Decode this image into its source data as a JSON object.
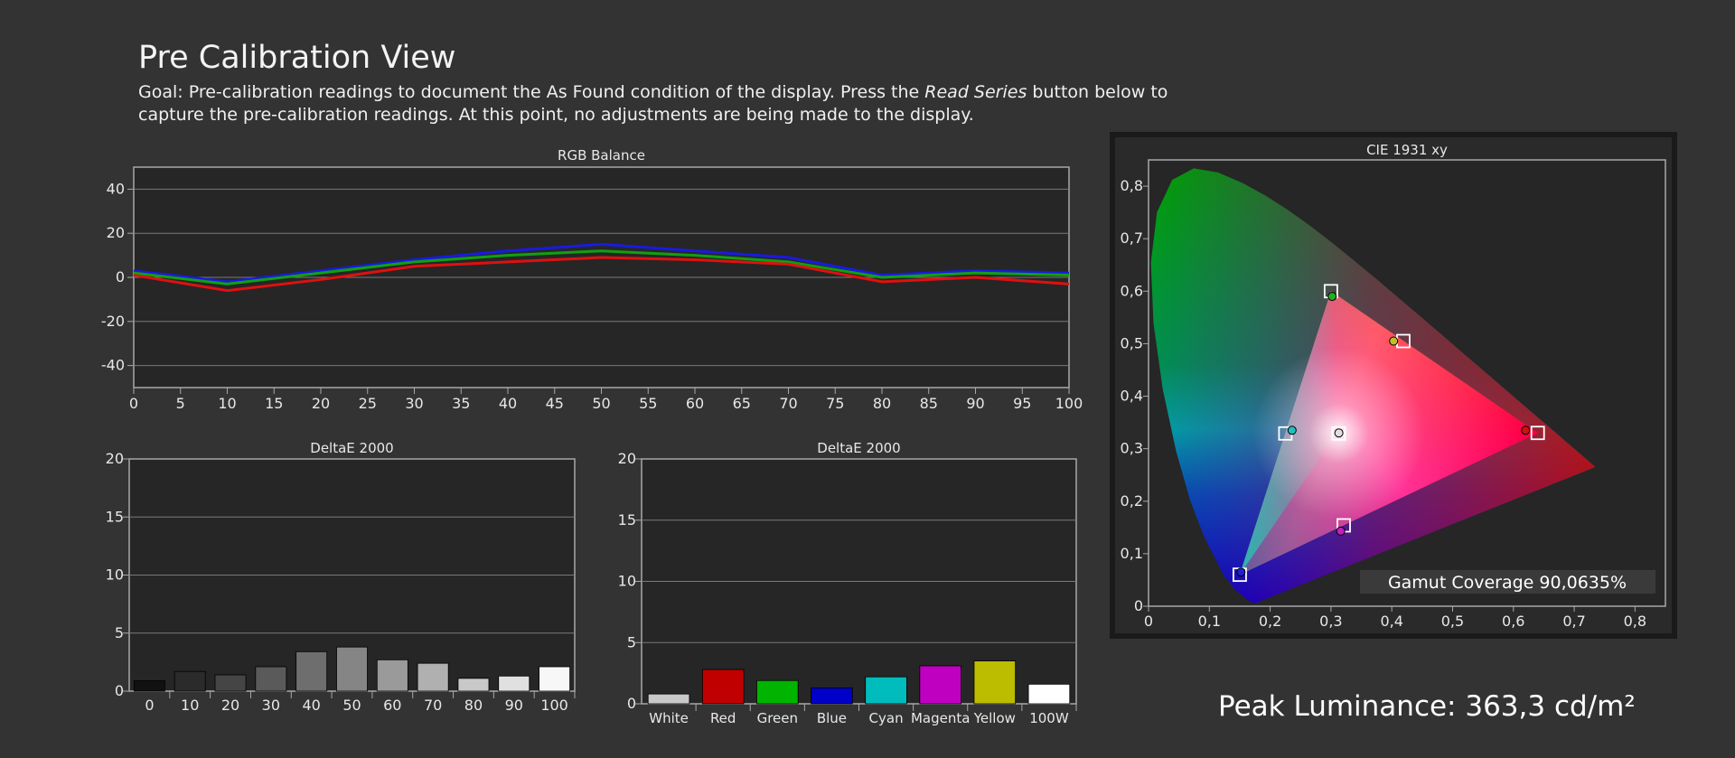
{
  "page": {
    "title": "Pre Calibration View",
    "goal_part1": "Goal: Pre-calibration readings to document the As Found condition of the display. Press the ",
    "goal_italic": "Read Series",
    "goal_part2": " button below to capture the pre-calibration readings. At this point, no adjustments are being made to the display.",
    "peak_luminance": "Peak Luminance: 363,3 cd/m²"
  },
  "colors": {
    "background": "#333333",
    "plot_bg": "#262626",
    "grid": "#7a7a7a",
    "red": "#e01010",
    "green": "#10a010",
    "blue": "#1a1ae0"
  },
  "chart_data": [
    {
      "id": "rgb_balance",
      "type": "line",
      "title": "RGB Balance",
      "x": [
        0,
        10,
        20,
        30,
        40,
        50,
        60,
        70,
        80,
        90,
        100
      ],
      "xticks": [
        "0",
        "5",
        "10",
        "15",
        "20",
        "25",
        "30",
        "35",
        "40",
        "45",
        "50",
        "55",
        "60",
        "65",
        "70",
        "75",
        "80",
        "85",
        "90",
        "95",
        "100"
      ],
      "yticks": [
        "40",
        "20",
        "0",
        "-20",
        "-40"
      ],
      "xlim": [
        0,
        100
      ],
      "ylim": [
        -50,
        50
      ],
      "series": [
        {
          "color": "#1a1ae0",
          "values": [
            3,
            -2,
            3,
            8,
            12,
            15,
            12,
            9,
            1,
            3,
            2
          ]
        },
        {
          "color": "#10a010",
          "values": [
            2,
            -3,
            2,
            7,
            10,
            12,
            10,
            7,
            0,
            2,
            1
          ]
        },
        {
          "color": "#e01010",
          "values": [
            1,
            -6,
            -1,
            5,
            7,
            9,
            8,
            6,
            -2,
            0,
            -3
          ]
        }
      ],
      "grid": true
    },
    {
      "id": "deltae_grayscale",
      "type": "bar",
      "title": "DeltaE 2000",
      "categories": [
        "0",
        "10",
        "20",
        "30",
        "40",
        "50",
        "60",
        "70",
        "80",
        "90",
        "100"
      ],
      "values": [
        0.9,
        1.7,
        1.4,
        2.1,
        3.4,
        3.8,
        2.7,
        2.4,
        1.1,
        1.3,
        2.1
      ],
      "bar_colors": [
        "#111111",
        "#2b2b2b",
        "#454545",
        "#5a5a5a",
        "#6e6e6e",
        "#858585",
        "#9a9a9a",
        "#b0b0b0",
        "#c8c8c8",
        "#e0e0e0",
        "#f7f7f7"
      ],
      "yticks": [
        "20",
        "15",
        "10",
        "5",
        "0"
      ],
      "ylim": [
        0,
        20
      ],
      "grid": true
    },
    {
      "id": "deltae_colors",
      "type": "bar",
      "title": "DeltaE 2000",
      "categories": [
        "White",
        "Red",
        "Green",
        "Blue",
        "Cyan",
        "Magenta",
        "Yellow",
        "100W"
      ],
      "values": [
        0.8,
        2.8,
        1.9,
        1.3,
        2.2,
        3.1,
        3.5,
        1.6
      ],
      "bar_colors": [
        "#c8c8c8",
        "#c00000",
        "#00b400",
        "#0000c8",
        "#00bcbc",
        "#c000c0",
        "#bcbc00",
        "#ffffff"
      ],
      "yticks": [
        "20",
        "15",
        "10",
        "5",
        "0"
      ],
      "ylim": [
        0,
        20
      ],
      "grid": true
    },
    {
      "id": "cie_1931",
      "type": "scatter",
      "title": "CIE 1931 xy",
      "xticks": [
        "0",
        "0,1",
        "0,2",
        "0,3",
        "0,4",
        "0,5",
        "0,6",
        "0,7",
        "0,8"
      ],
      "yticks": [
        "0,8",
        "0,7",
        "0,6",
        "0,5",
        "0,4",
        "0,3",
        "0,2",
        "0,1",
        "0"
      ],
      "xlim": [
        0,
        0.85
      ],
      "ylim": [
        0,
        0.85
      ],
      "targets": [
        {
          "name": "red",
          "x": 0.64,
          "y": 0.33
        },
        {
          "name": "green",
          "x": 0.3,
          "y": 0.6
        },
        {
          "name": "blue",
          "x": 0.15,
          "y": 0.06
        },
        {
          "name": "cyan",
          "x": 0.225,
          "y": 0.329
        },
        {
          "name": "magenta",
          "x": 0.321,
          "y": 0.154
        },
        {
          "name": "yellow",
          "x": 0.419,
          "y": 0.505
        },
        {
          "name": "white",
          "x": 0.3127,
          "y": 0.329
        }
      ],
      "measured": [
        {
          "name": "red",
          "x": 0.62,
          "y": 0.335,
          "color": "#d01010"
        },
        {
          "name": "green",
          "x": 0.302,
          "y": 0.59,
          "color": "#20b020"
        },
        {
          "name": "blue",
          "x": 0.152,
          "y": 0.065,
          "color": "#2020d0"
        },
        {
          "name": "cyan",
          "x": 0.236,
          "y": 0.335,
          "color": "#20c0c0"
        },
        {
          "name": "magenta",
          "x": 0.316,
          "y": 0.143,
          "color": "#c020c0"
        },
        {
          "name": "yellow",
          "x": 0.403,
          "y": 0.505,
          "color": "#c0c020"
        },
        {
          "name": "white",
          "x": 0.313,
          "y": 0.33,
          "color": "#e0e0e0"
        }
      ],
      "annotation": "Gamut Coverage 90,0635%"
    }
  ]
}
